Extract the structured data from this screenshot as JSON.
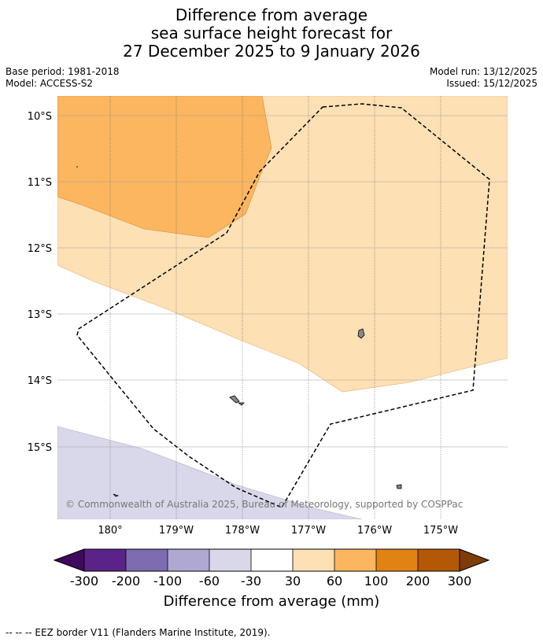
{
  "title": {
    "line1": "Difference from average",
    "line2": "sea surface height forecast for",
    "line3": "27 December 2025 to 9 January 2026"
  },
  "meta": {
    "base_period": "Base period: 1981-2018",
    "model": "Model: ACCESS-S2",
    "model_run": "Model run: 13/12/2025",
    "issued": "Issued: 15/12/2025"
  },
  "map": {
    "lat_labels": [
      "10°S",
      "11°S",
      "12°S",
      "13°S",
      "14°S",
      "15°S"
    ],
    "lon_labels": [
      "180°",
      "179°W",
      "178°W",
      "177°W",
      "176°W",
      "175°W"
    ],
    "copyright": "© Commonwealth of Australia 2025, Bureau of Meteorology, supported by COSPPac"
  },
  "colorbar": {
    "tick_labels": [
      "-300",
      "-200",
      "-100",
      "-60",
      "-30",
      "30",
      "60",
      "100",
      "200",
      "300"
    ],
    "colors": [
      "#3f0a5e",
      "#5b2388",
      "#7d6db0",
      "#b0a8d2",
      "#d8d8ea",
      "#ffffff",
      "#fde0b4",
      "#fbb65f",
      "#e08214",
      "#b35806",
      "#7f3b08"
    ],
    "label": "Difference from average (mm)"
  },
  "footer": {
    "legend": "--  --  -- EEZ border V11 (Flanders Marine Institute, 2019)."
  },
  "legend_colors": {
    "anomaly_30_60": "#fde0b4",
    "anomaly_60_100": "#fbb65f",
    "anomaly_minus60_minus30": "#d8d8ea",
    "land": "#888888"
  }
}
